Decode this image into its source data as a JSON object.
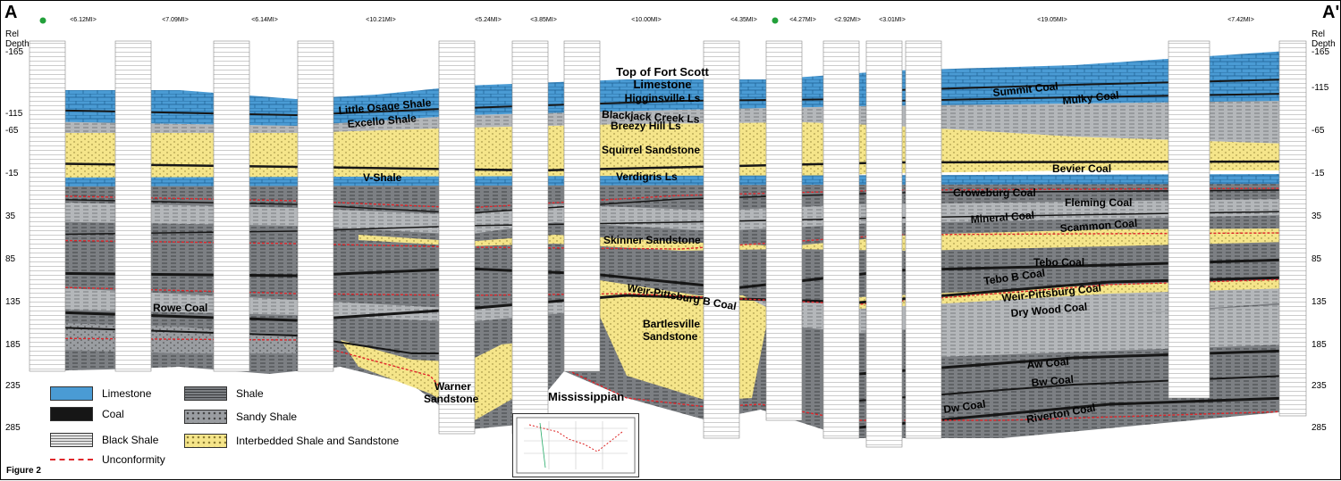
{
  "corner_left": "A",
  "corner_right": "A'",
  "depth_axis": {
    "title_line1": "Rel",
    "title_line2": "Depth",
    "ticks": [
      "-165",
      "-115",
      "-65",
      "-15",
      "35",
      "85",
      "135",
      "185",
      "235",
      "285"
    ]
  },
  "distances": [
    "<6.12MI>",
    "<7.09MI>",
    "<6.14MI>",
    "<10.21MI>",
    "<5.24MI>",
    "<3.85MI>",
    "<10.00MI>",
    "<4.35MI>",
    "<4.27MI>",
    "<2.92MI>",
    "<3.01MI>",
    "<19.05MI>",
    "<7.42MI>"
  ],
  "units": {
    "top_of_fort_scott": "Top of Fort Scott",
    "limestone_word": "Limestone",
    "higginsville": "Higginsville Ls",
    "little_osage": "Little Osage Shale",
    "excello": "Excello Shale",
    "blackjack": "Blackjack Creek Ls",
    "breezy_hill": "Breezy Hill Ls",
    "squirrel": "Squirrel Sandstone",
    "v_shale": "V-Shale",
    "verdigris": "Verdigris Ls",
    "summit": "Summit Coal",
    "mulky": "Mulky Coal",
    "bevier": "Bevier Coal",
    "croweburg": "Croweburg Coal",
    "fleming": "Fleming Coal",
    "mineral": "Mineral Coal",
    "scammon": "Scammon Coal",
    "skinner": "Skinner Sandstone",
    "tebo": "Tebo Coal",
    "tebo_b": "Tebo B Coal",
    "weir_pitts": "Weir-Pittsburg Coal",
    "weir_pitts_b": "Weir-Pittsburg B Coal",
    "dry_wood": "Dry Wood Coal",
    "rowe": "Rowe Coal",
    "bartlesville_1": "Bartlesville",
    "bartlesville_2": "Sandstone",
    "warner_1": "Warner",
    "warner_2": "Sandstone",
    "mississippian": "Mississippian",
    "aw": "Aw Coal",
    "bw": "Bw Coal",
    "dw": "Dw Coal",
    "riverton": "Riverton Coal"
  },
  "legend": {
    "limestone": "Limestone",
    "coal": "Coal",
    "black_shale": "Black Shale",
    "unconformity": "Unconformity",
    "shale": "Shale",
    "sandy_shale": "Sandy Shale",
    "interbedded": "Interbedded Shale and Sandstone"
  },
  "figure_label": "Figure 2",
  "colors": {
    "limestone": "#4a9bd4",
    "sandstone": "#f5e58a",
    "shale_dark": "#7c7f83",
    "shale_light": "#b4b7ba",
    "coal": "#161616",
    "unconformity": "#e0262b",
    "well_marker_green": "#22a03a"
  }
}
